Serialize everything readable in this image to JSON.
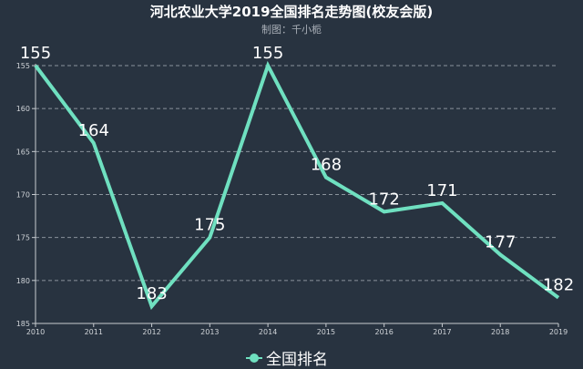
{
  "title": "河北农业大学2019全国排名走势图(校友会版)",
  "subtitle": "制图：千小栀",
  "legend": {
    "label": "全国排名",
    "color": "#6fe0c0"
  },
  "colors": {
    "background": "#283340",
    "line": "#6fe0c0",
    "grid": "#8a939c",
    "axis": "#c8ccd0",
    "text": "#ffffff"
  },
  "chart_data": {
    "type": "line",
    "title": "河北农业大学2019全国排名走势图(校友会版)",
    "subtitle": "制图：千小栀",
    "xlabel": "",
    "ylabel": "",
    "categories": [
      "2010",
      "2011",
      "2012",
      "2013",
      "2014",
      "2015",
      "2016",
      "2017",
      "2018",
      "2019"
    ],
    "series": [
      {
        "name": "全国排名",
        "values": [
          155,
          164,
          183,
          175,
          155,
          168,
          172,
          171,
          177,
          182
        ]
      }
    ],
    "ylim": [
      155,
      185
    ],
    "y_inverted": true,
    "y_ticks": [
      155,
      160,
      165,
      170,
      175,
      180,
      185
    ],
    "grid": true,
    "legend_position": "bottom"
  }
}
